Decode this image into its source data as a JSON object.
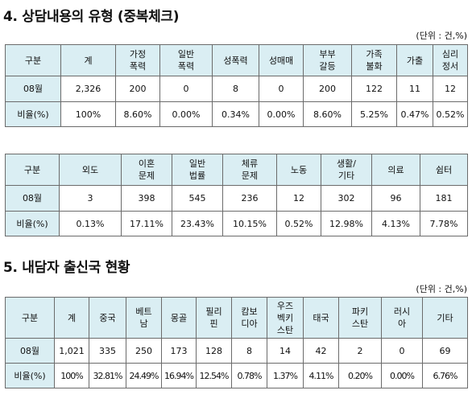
{
  "section4": {
    "title": "4. 상담내용의 유형 (중복체크)",
    "unit": "(단위 : 건,%)",
    "table1": {
      "headers": [
        "구분",
        "계",
        "가정\n폭력",
        "일반\n폭력",
        "성폭력",
        "성매매",
        "부부\n갈등",
        "가족\n불화",
        "가출",
        "심리\n정서"
      ],
      "count_row": [
        "08월",
        "2,326",
        "200",
        "0",
        "8",
        "0",
        "200",
        "122",
        "11",
        "12"
      ],
      "ratio_row": [
        "비율(%)",
        "100%",
        "8.60%",
        "0.00%",
        "0.34%",
        "0.00%",
        "8.60%",
        "5.25%",
        "0.47%",
        "0.52%"
      ]
    },
    "table2": {
      "headers": [
        "구분",
        "외도",
        "이혼\n문제",
        "일반\n법률",
        "체류\n문제",
        "노동",
        "생활/\n기타",
        "의료",
        "쉼터"
      ],
      "count_row": [
        "08월",
        "3",
        "398",
        "545",
        "236",
        "12",
        "302",
        "96",
        "181"
      ],
      "ratio_row": [
        "비율(%)",
        "0.13%",
        "17.11%",
        "23.43%",
        "10.15%",
        "0.52%",
        "12.98%",
        "4.13%",
        "7.78%"
      ]
    }
  },
  "section5": {
    "title": "5. 내담자 출신국 현황",
    "unit": "(단위 : 건,%)",
    "table3": {
      "headers": [
        "구분",
        "계",
        "중국",
        "베트\n남",
        "몽골",
        "필리\n핀",
        "캄보\n디아",
        "우즈\n벡키\n스탄",
        "태국",
        "파키\n스탄",
        "러시\n아",
        "기타"
      ],
      "count_row": [
        "08월",
        "1,021",
        "335",
        "250",
        "173",
        "128",
        "8",
        "14",
        "42",
        "2",
        "0",
        "69"
      ],
      "ratio_row": [
        "비율(%)",
        "100%",
        "32.81%",
        "24.49%",
        "16.94%",
        "12.54%",
        "0.78%",
        "1.37%",
        "4.11%",
        "0.20%",
        "0.00%",
        "6.76%"
      ]
    }
  }
}
